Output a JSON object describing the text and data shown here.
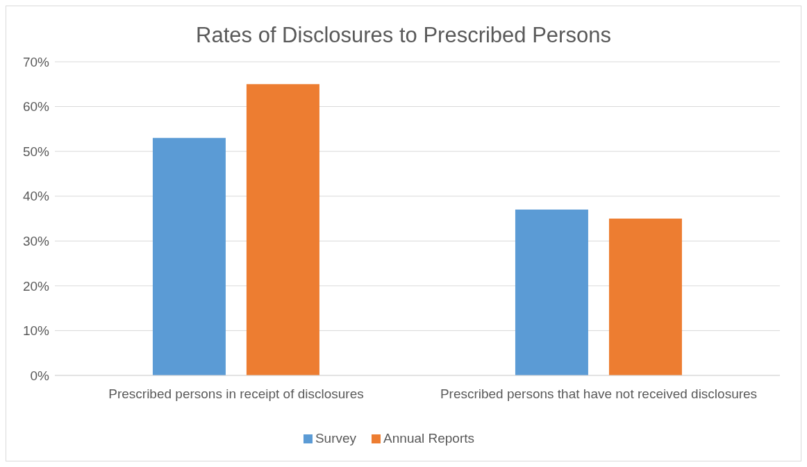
{
  "chart_data": {
    "type": "bar",
    "title": "Rates of Disclosures to Prescribed Persons",
    "categories": [
      "Prescribed persons in receipt of disclosures",
      "Prescribed persons that have not received disclosures"
    ],
    "series": [
      {
        "name": "Survey",
        "color": "#5b9bd5",
        "values": [
          53,
          37
        ]
      },
      {
        "name": "Annual Reports",
        "color": "#ed7d31",
        "values": [
          65,
          35
        ]
      }
    ],
    "ylim": [
      0,
      70
    ],
    "yticks": [
      {
        "value": 0,
        "label": "0%"
      },
      {
        "value": 10,
        "label": "10%"
      },
      {
        "value": 20,
        "label": "20%"
      },
      {
        "value": 30,
        "label": "30%"
      },
      {
        "value": 40,
        "label": "40%"
      },
      {
        "value": 50,
        "label": "50%"
      },
      {
        "value": 60,
        "label": "60%"
      },
      {
        "value": 70,
        "label": "70%"
      }
    ],
    "grid": "y",
    "legend": "bottom"
  }
}
